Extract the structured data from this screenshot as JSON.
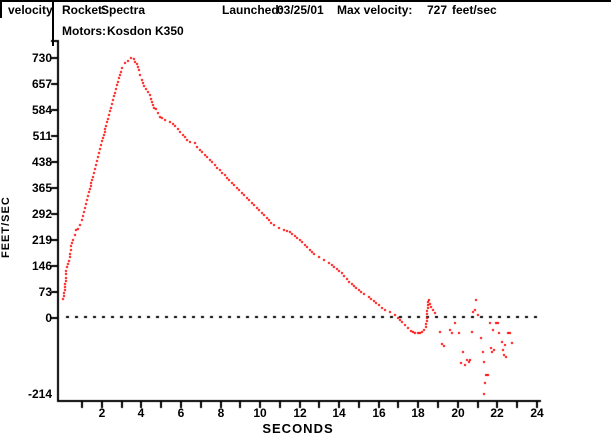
{
  "header": {
    "chart_type_label": "velocity",
    "rocket_label": "Rocket:",
    "rocket_value": "Spectra",
    "launched_label": "Launched:",
    "launched_value": "03/25/01",
    "max_velocity_label": "Max velocity:",
    "max_velocity_value": "727",
    "max_velocity_unit": "feet/sec",
    "motors_label": "Motors:",
    "motors_value": "Kosdon K350"
  },
  "chart_data": {
    "type": "scatter",
    "title": "velocity",
    "xlabel": "SECONDS",
    "ylabel": "FEET/SEC",
    "units": "feet/sec",
    "max_velocity": 727,
    "x_axis_range": [
      0,
      24.3
    ],
    "y_axis_range": [
      -236,
      780
    ],
    "x_ticks": [
      2,
      4,
      6,
      8,
      10,
      12,
      14,
      16,
      18,
      20,
      22,
      24
    ],
    "x_minor_tick_step": 1,
    "y_ticks": [
      730,
      657,
      584,
      511,
      438,
      365,
      292,
      219,
      146,
      73,
      0,
      -214
    ],
    "y_tick_step": 73,
    "zero_dotted_line": true,
    "grid": false,
    "legend": "none",
    "point_color": "#ff0000",
    "axis_color": "#000000",
    "xlabel_color": "#8b2020",
    "flight_points": [
      [
        0.05,
        53
      ],
      [
        0.15,
        95
      ],
      [
        0.2,
        132
      ],
      [
        0.3,
        152
      ],
      [
        0.4,
        180
      ],
      [
        0.45,
        202
      ],
      [
        0.55,
        219
      ],
      [
        0.65,
        233
      ],
      [
        0.7,
        247
      ],
      [
        0.8,
        250
      ],
      [
        0.9,
        261
      ],
      [
        1.0,
        275
      ],
      [
        1.1,
        298
      ],
      [
        1.2,
        320
      ],
      [
        1.3,
        343
      ],
      [
        1.4,
        362
      ],
      [
        1.5,
        387
      ],
      [
        1.6,
        407
      ],
      [
        1.7,
        430
      ],
      [
        1.8,
        452
      ],
      [
        1.9,
        474
      ],
      [
        2.0,
        497
      ],
      [
        2.1,
        514
      ],
      [
        2.2,
        539
      ],
      [
        2.3,
        559
      ],
      [
        2.4,
        581
      ],
      [
        2.5,
        601
      ],
      [
        2.6,
        623
      ],
      [
        2.7,
        643
      ],
      [
        2.8,
        663
      ],
      [
        2.9,
        682
      ],
      [
        3.0,
        702
      ],
      [
        3.15,
        715
      ],
      [
        3.3,
        722
      ],
      [
        3.45,
        730
      ],
      [
        3.6,
        727
      ],
      [
        3.75,
        712
      ],
      [
        3.85,
        696
      ],
      [
        3.95,
        682
      ],
      [
        4.05,
        668
      ],
      [
        4.15,
        651
      ],
      [
        4.25,
        643
      ],
      [
        4.35,
        634
      ],
      [
        4.45,
        626
      ],
      [
        4.55,
        606
      ],
      [
        4.65,
        590
      ],
      [
        4.75,
        587
      ],
      [
        4.85,
        576
      ],
      [
        4.95,
        564
      ],
      [
        5.05,
        561
      ],
      [
        5.2,
        556
      ],
      [
        5.45,
        550
      ],
      [
        5.7,
        539
      ],
      [
        5.95,
        522
      ],
      [
        6.2,
        508
      ],
      [
        6.45,
        494
      ],
      [
        6.7,
        491
      ],
      [
        6.95,
        472
      ],
      [
        7.2,
        458
      ],
      [
        7.45,
        444
      ],
      [
        7.7,
        430
      ],
      [
        7.95,
        415
      ],
      [
        8.2,
        401
      ],
      [
        8.45,
        387
      ],
      [
        8.7,
        373
      ],
      [
        8.95,
        359
      ],
      [
        9.2,
        345
      ],
      [
        9.45,
        331
      ],
      [
        9.7,
        317
      ],
      [
        9.95,
        303
      ],
      [
        10.2,
        289
      ],
      [
        10.45,
        275
      ],
      [
        10.7,
        261
      ],
      [
        10.95,
        253
      ],
      [
        11.2,
        247
      ],
      [
        11.5,
        241
      ],
      [
        11.75,
        230
      ],
      [
        12.0,
        219
      ],
      [
        12.25,
        205
      ],
      [
        12.5,
        191
      ],
      [
        12.75,
        180
      ],
      [
        13.0,
        171
      ],
      [
        13.25,
        163
      ],
      [
        13.5,
        154
      ],
      [
        13.75,
        143
      ],
      [
        14.0,
        132
      ],
      [
        14.25,
        118
      ],
      [
        14.5,
        101
      ],
      [
        14.75,
        90
      ],
      [
        15.0,
        79
      ],
      [
        15.25,
        67
      ],
      [
        15.5,
        59
      ],
      [
        15.75,
        48
      ],
      [
        16.0,
        36
      ],
      [
        16.3,
        22
      ],
      [
        16.55,
        17
      ],
      [
        16.8,
        8
      ],
      [
        16.95,
        0
      ],
      [
        17.2,
        -11
      ],
      [
        17.35,
        -20
      ],
      [
        17.5,
        -28
      ],
      [
        17.65,
        -36
      ],
      [
        17.75,
        -39
      ],
      [
        17.85,
        -42
      ],
      [
        18.0,
        -42
      ],
      [
        18.1,
        -42
      ],
      [
        18.2,
        -39
      ],
      [
        18.3,
        -34
      ],
      [
        18.4,
        -25
      ],
      [
        18.5,
        45
      ],
      [
        18.55,
        50
      ],
      [
        18.65,
        31
      ],
      [
        18.75,
        22
      ],
      [
        18.85,
        14
      ]
    ],
    "descent_noise_points": [
      [
        19.1,
        -39
      ],
      [
        19.2,
        -73
      ],
      [
        19.3,
        -79
      ],
      [
        19.6,
        -34
      ],
      [
        19.7,
        -42
      ],
      [
        19.85,
        -14
      ],
      [
        20.05,
        -42
      ],
      [
        20.15,
        -126
      ],
      [
        20.25,
        -95
      ],
      [
        20.35,
        -132
      ],
      [
        20.45,
        -118
      ],
      [
        20.55,
        -124
      ],
      [
        20.6,
        -118
      ],
      [
        20.7,
        -39
      ],
      [
        20.75,
        17
      ],
      [
        20.85,
        22
      ],
      [
        20.9,
        50
      ],
      [
        21.0,
        8
      ],
      [
        21.15,
        -56
      ],
      [
        21.25,
        -95
      ],
      [
        21.3,
        -214
      ],
      [
        21.35,
        -124
      ],
      [
        21.4,
        -182
      ],
      [
        21.45,
        -160
      ],
      [
        21.55,
        -160
      ],
      [
        21.65,
        -14
      ],
      [
        21.7,
        -84
      ],
      [
        21.75,
        -95
      ],
      [
        21.8,
        -34
      ],
      [
        21.85,
        -90
      ],
      [
        21.95,
        -14
      ],
      [
        22.05,
        -14
      ],
      [
        22.1,
        -42
      ],
      [
        22.25,
        -67
      ],
      [
        22.3,
        -90
      ],
      [
        22.35,
        -104
      ],
      [
        22.4,
        -76
      ],
      [
        22.45,
        -110
      ],
      [
        22.55,
        -42
      ],
      [
        22.65,
        -42
      ],
      [
        22.75,
        -70
      ]
    ]
  }
}
